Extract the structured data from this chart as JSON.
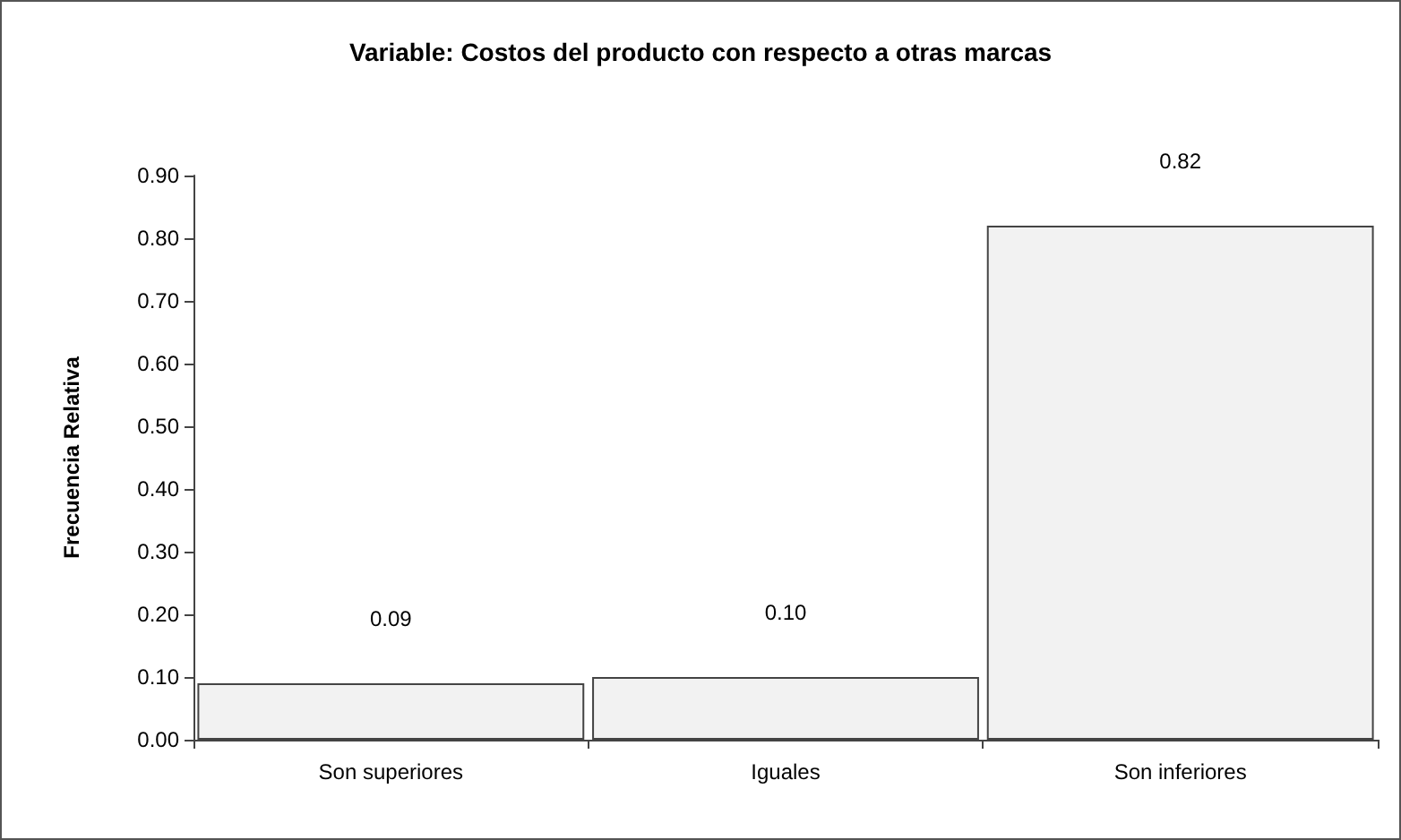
{
  "chart_data": {
    "type": "bar",
    "title": "Variable: Costos del producto con respecto a otras marcas",
    "ylabel": "Frecuencia Relativa",
    "categories": [
      "Son superiores",
      "Iguales",
      "Son inferiores"
    ],
    "values": [
      0.09,
      0.1,
      0.82
    ],
    "value_labels": [
      "0.09",
      "0.10",
      "0.82"
    ],
    "color": "#f2f2f2",
    "ylim": [
      0,
      0.9
    ],
    "yticks": [
      {
        "value": 0,
        "label": "0.00"
      },
      {
        "value": 0.1,
        "label": "0.10"
      },
      {
        "value": 0.2,
        "label": "0.20"
      },
      {
        "value": 0.3,
        "label": "0.30"
      },
      {
        "value": 0.4,
        "label": "0.40"
      },
      {
        "value": 0.5,
        "label": "0.50"
      },
      {
        "value": 0.6,
        "label": "0.60"
      },
      {
        "value": 0.7,
        "label": "0.70"
      },
      {
        "value": 0.8,
        "label": "0.80"
      },
      {
        "value": 0.9,
        "label": "0.90"
      }
    ],
    "grid": false
  }
}
